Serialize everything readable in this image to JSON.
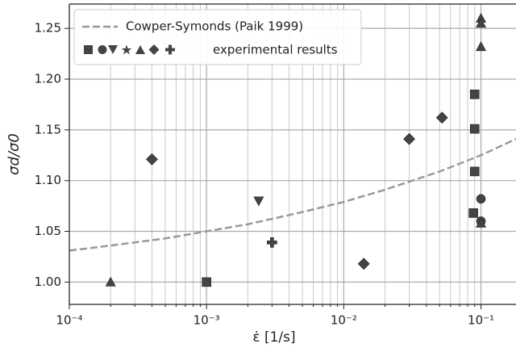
{
  "chart_data": {
    "type": "scatter",
    "xlabel": "ε̇ [1/s]",
    "ylabel": "σd/σ0",
    "xscale": "log",
    "grid": true,
    "minor_grid": true,
    "legend": "upper left",
    "xlim": [
      0.0001,
      0.18
    ],
    "ylim": [
      0.978,
      1.274
    ],
    "xticks": [
      {
        "value": 0.0001,
        "label": "10⁻⁴"
      },
      {
        "value": 0.001,
        "label": "10⁻³"
      },
      {
        "value": 0.01,
        "label": "10⁻²"
      },
      {
        "value": 0.1,
        "label": "10⁻¹"
      }
    ],
    "yticks": [
      {
        "value": 1.0,
        "label": "1.00"
      },
      {
        "value": 1.05,
        "label": "1.05"
      },
      {
        "value": 1.1,
        "label": "1.10"
      },
      {
        "value": 1.15,
        "label": "1.15"
      },
      {
        "value": 1.2,
        "label": "1.20"
      },
      {
        "value": 1.25,
        "label": "1.25"
      }
    ],
    "curve": {
      "name": "Cowper-Symonds (Paik 1999)",
      "color": "#999999",
      "style": "dashed",
      "x": [
        0.0001,
        0.0002,
        0.0005,
        0.001,
        0.002,
        0.005,
        0.01,
        0.02,
        0.05,
        0.1,
        0.18
      ],
      "values": [
        1.031,
        1.036,
        1.043,
        1.05,
        1.057,
        1.069,
        1.079,
        1.091,
        1.109,
        1.125,
        1.141
      ]
    },
    "experimental": {
      "name": "experimental results",
      "color": "#444444",
      "groups": [
        {
          "marker": "square",
          "x": [
            0.001,
            0.09,
            0.09,
            0.09,
            0.088
          ],
          "values": [
            1.0,
            1.185,
            1.151,
            1.109,
            1.068
          ]
        },
        {
          "marker": "circle",
          "x": [
            0.1,
            0.1
          ],
          "values": [
            1.082,
            1.06
          ]
        },
        {
          "marker": "triangle-down",
          "x": [
            0.0024
          ],
          "values": [
            1.08
          ]
        },
        {
          "marker": "triangle",
          "x": [
            0.0002,
            0.1,
            0.1,
            0.1,
            0.1
          ],
          "values": [
            1.0,
            1.26,
            1.255,
            1.232,
            1.058
          ]
        },
        {
          "marker": "diamond",
          "x": [
            0.0004,
            0.014,
            0.03,
            0.052
          ],
          "values": [
            1.121,
            1.018,
            1.141,
            1.162
          ]
        },
        {
          "marker": "plus",
          "x": [
            0.003
          ],
          "values": [
            1.039
          ]
        }
      ]
    }
  }
}
